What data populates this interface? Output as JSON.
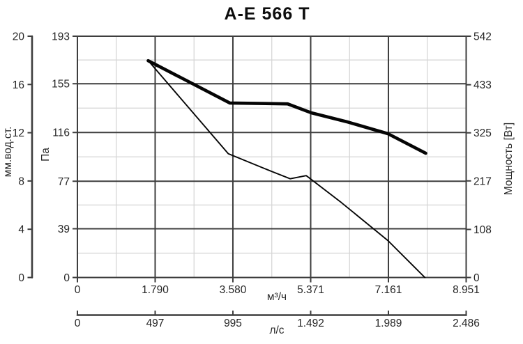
{
  "title": "A-E 566 T",
  "chart_data": {
    "type": "line",
    "title": "A-E 566 T",
    "grid": true,
    "legend": "none",
    "axes": {
      "left_outer": {
        "label": "мм.вод.ст.",
        "ticks": [
          0,
          4,
          8,
          12,
          16,
          20
        ],
        "range": [
          0,
          20
        ]
      },
      "left_inner": {
        "label": "Па",
        "ticks": [
          0,
          39,
          77,
          116,
          155,
          193
        ],
        "range": [
          0,
          193
        ]
      },
      "right": {
        "label": "Мощность [Вт]",
        "ticks": [
          0,
          108,
          217,
          325,
          433,
          542
        ],
        "range": [
          0,
          542
        ]
      },
      "bottom_flow_m3h": {
        "label": "м³/ч",
        "ticks": [
          0,
          1790,
          3580,
          5371,
          7161,
          8951
        ],
        "tick_labels": [
          "0",
          "1.790",
          "3.580",
          "5.371",
          "7.161",
          "8.951"
        ],
        "range": [
          0,
          8951
        ]
      },
      "bottom_flow_ls": {
        "label": "л/с",
        "ticks": [
          0,
          497,
          995,
          1492,
          1989,
          2486
        ],
        "tick_labels": [
          "0",
          "497",
          "995",
          "1.492",
          "1.989",
          "2.486"
        ],
        "range": [
          0,
          2486
        ]
      }
    },
    "series": [
      {
        "name": "pressure-curve",
        "axis": "left_inner",
        "unit": "Па",
        "style": "thin",
        "points": [
          [
            1630,
            173.5
          ],
          [
            3475,
            99
          ],
          [
            4460,
            85
          ],
          [
            4900,
            79
          ],
          [
            5270,
            81.5
          ],
          [
            6075,
            60
          ],
          [
            7150,
            29.5
          ],
          [
            8000,
            0
          ]
        ]
      },
      {
        "name": "power-curve",
        "axis": "right",
        "unit": "Вт",
        "style": "thick",
        "points": [
          [
            1630,
            487
          ],
          [
            3510,
            392
          ],
          [
            4840,
            390
          ],
          [
            5385,
            370
          ],
          [
            6235,
            349
          ],
          [
            7150,
            323
          ],
          [
            8020,
            279
          ]
        ]
      }
    ],
    "colors": {
      "curve": "#050505",
      "grid_major": "#3e3e3e",
      "grid_minor": "#d4d4d4",
      "axis": "#3e3e3e",
      "text": "#262626",
      "background": "#ffffff"
    }
  }
}
